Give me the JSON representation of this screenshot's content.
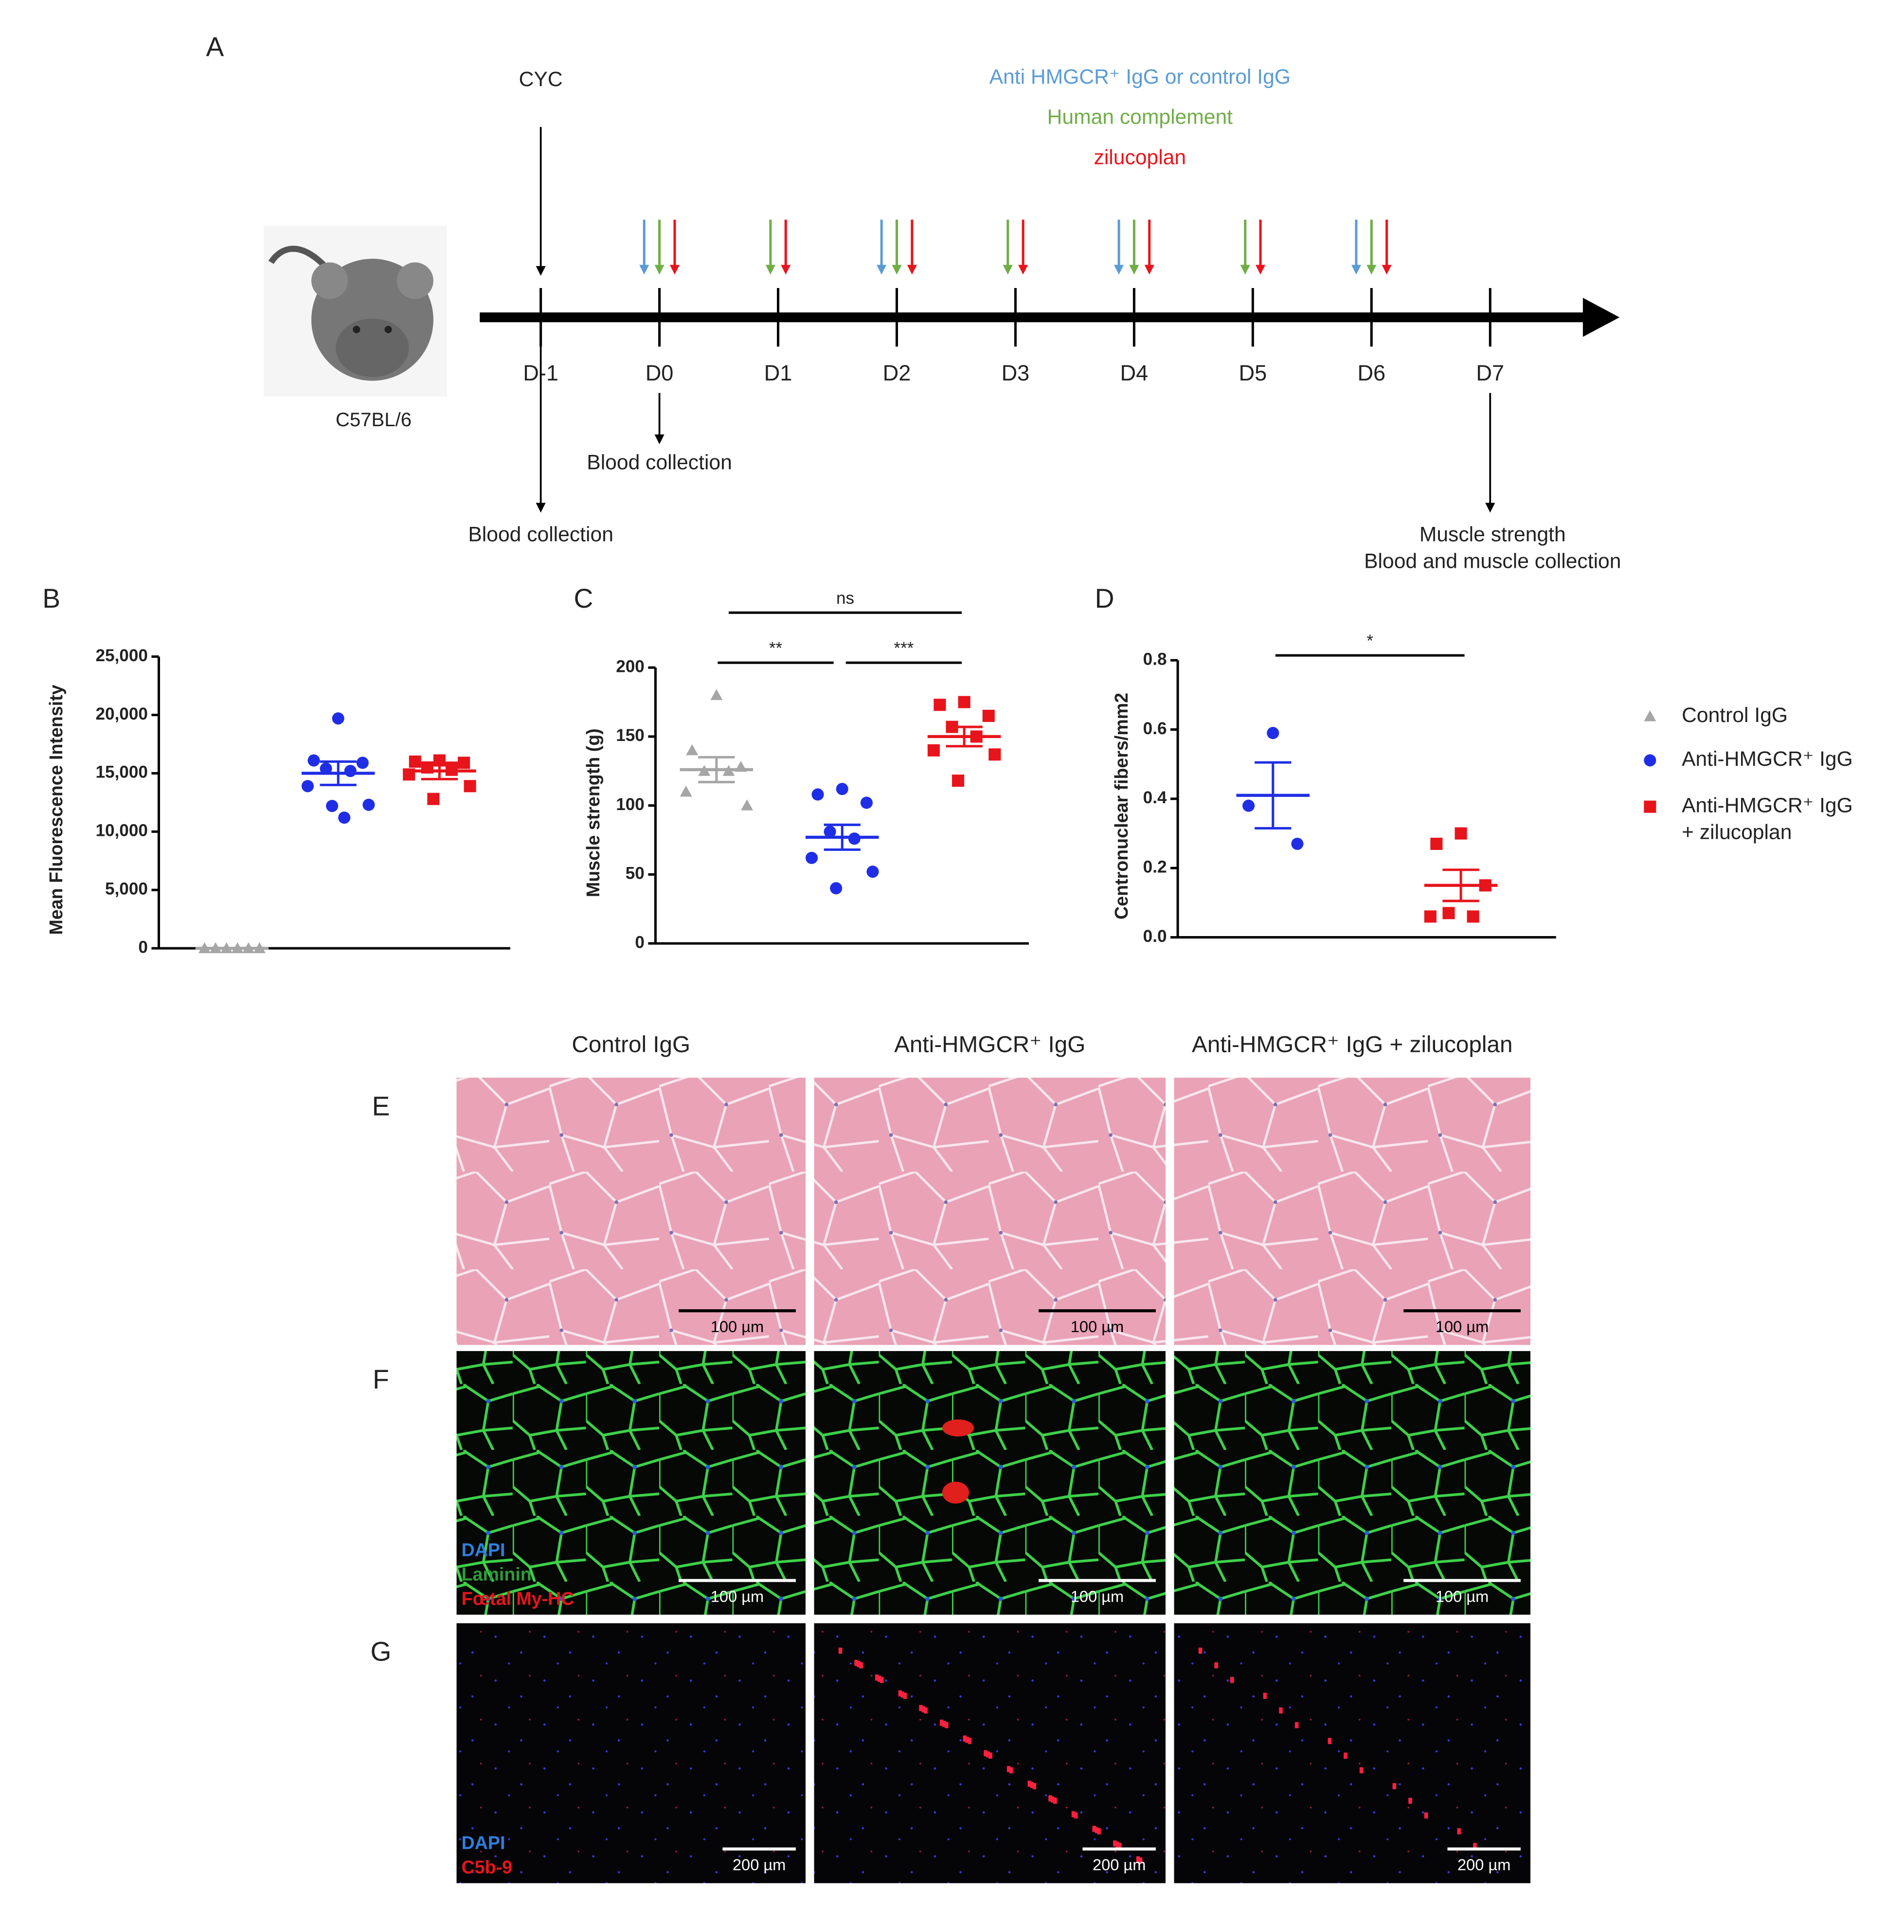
{
  "timeline": {
    "panel": "A",
    "top_label": "CYC",
    "treatments": [
      {
        "text": "Anti HMGCR⁺ IgG  or control IgG",
        "color": "#5b9bd5"
      },
      {
        "text": "Human complement",
        "color": "#70ad47"
      },
      {
        "text": "zilucoplan",
        "color": "#e8141b"
      }
    ],
    "strain": "C57BL/6",
    "days": [
      "D-1",
      "D0",
      "D1",
      "D2",
      "D3",
      "D4",
      "D5",
      "D6",
      "D7"
    ],
    "events": [
      {
        "lines": [
          "Blood collection"
        ]
      },
      {
        "lines": [
          "Blood collection"
        ]
      },
      {
        "lines": [
          "Muscle strength",
          "Blood and muscle collection"
        ]
      }
    ]
  },
  "legend": [
    {
      "lines": [
        "Control IgG"
      ],
      "color": "#a6a6a6",
      "marker": "triangle"
    },
    {
      "lines": [
        "Anti-HMGCR⁺ IgG"
      ],
      "color": "#1f2ee6",
      "marker": "circle"
    },
    {
      "lines": [
        "Anti-HMGCR⁺ IgG",
        "+ zilucoplan"
      ],
      "color": "#e8141b",
      "marker": "square"
    }
  ],
  "chart_data": [
    {
      "type": "scatter",
      "panel": "B",
      "ylabel": "Mean Fluorescence Intensity",
      "ylim": [
        0,
        25000
      ],
      "yticks": [
        0,
        {
          "value": 5000,
          "label": "5,000"
        },
        {
          "value": 10000,
          "label": "10,000"
        },
        {
          "value": 15000,
          "label": "15,000"
        },
        {
          "value": 20000,
          "label": "20,000"
        },
        {
          "value": 25000,
          "label": "25,000"
        }
      ],
      "annotations": [],
      "series": [
        {
          "color": "#a6a6a6",
          "marker": "triangle",
          "values": [
            0,
            0,
            0,
            0,
            0,
            0
          ],
          "mean": 0,
          "sem": 0
        },
        {
          "color": "#1f2ee6",
          "marker": "circle",
          "values": [
            19700,
            16100,
            15900,
            15400,
            15200,
            13900,
            12300,
            12200,
            11200
          ],
          "mean": 15000,
          "sem": 1000
        },
        {
          "color": "#e8141b",
          "marker": "square",
          "values": [
            16100,
            16000,
            15900,
            15500,
            15300,
            14900,
            13900,
            12800
          ],
          "mean": 15200,
          "sem": 700
        }
      ]
    },
    {
      "type": "scatter",
      "panel": "C",
      "ylabel": "Muscle strength (g)",
      "ylim": [
        0,
        200
      ],
      "yticks": [
        0,
        50,
        100,
        150,
        200
      ],
      "annotations": [
        "ns",
        "**",
        "***"
      ],
      "series": [
        {
          "color": "#a6a6a6",
          "marker": "triangle",
          "values": [
            180,
            140,
            128,
            125,
            125,
            110,
            100
          ],
          "mean": 126,
          "sem": 9
        },
        {
          "color": "#1f2ee6",
          "marker": "circle",
          "values": [
            112,
            108,
            102,
            81,
            76,
            62,
            52,
            40
          ],
          "mean": 77,
          "sem": 9
        },
        {
          "color": "#e8141b",
          "marker": "square",
          "values": [
            175,
            173,
            165,
            157,
            150,
            140,
            137,
            118
          ],
          "mean": 150,
          "sem": 7
        }
      ]
    },
    {
      "type": "scatter",
      "panel": "D",
      "ylabel": "Centronuclear fibers/mm2",
      "ylim": [
        0,
        0.8
      ],
      "yticks": [
        {
          "value": 0,
          "label": "0.0"
        },
        0.2,
        0.4,
        0.6,
        0.8
      ],
      "annotations": [
        "*"
      ],
      "series": [
        {
          "color": "#1f2ee6",
          "marker": "circle",
          "values": [
            0.59,
            0.38,
            0.27
          ],
          "mean": 0.41,
          "sem": 0.095
        },
        {
          "color": "#e8141b",
          "marker": "square",
          "values": [
            0.3,
            0.27,
            0.15,
            0.07,
            0.06,
            0.06
          ],
          "mean": 0.15,
          "sem": 0.045
        }
      ]
    }
  ],
  "histology": {
    "columns": [
      "Control IgG",
      "Anti-HMGCR⁺ IgG",
      "Anti-HMGCR⁺ IgG + zilucoplan"
    ],
    "rows": [
      {
        "label": "E",
        "scale_bars": [
          "100 µm",
          "100 µm",
          "100 µm"
        ],
        "channels": []
      },
      {
        "label": "F",
        "scale_bars": [
          "100 µm",
          "100 µm",
          "100 µm"
        ],
        "channels": [
          {
            "text": "DAPI",
            "color": "#2f7fe0"
          },
          {
            "text": "Laminin",
            "color": "#2e9b3a"
          },
          {
            "text": "Fœtal My-HC",
            "color": "#e8141b"
          }
        ]
      },
      {
        "label": "G",
        "scale_bars": [
          "200 µm",
          "200 µm",
          "200 µm"
        ],
        "channels": [
          {
            "text": "DAPI",
            "color": "#2f7fe0"
          },
          {
            "text": "C5b-9",
            "color": "#e8141b"
          }
        ]
      }
    ]
  }
}
